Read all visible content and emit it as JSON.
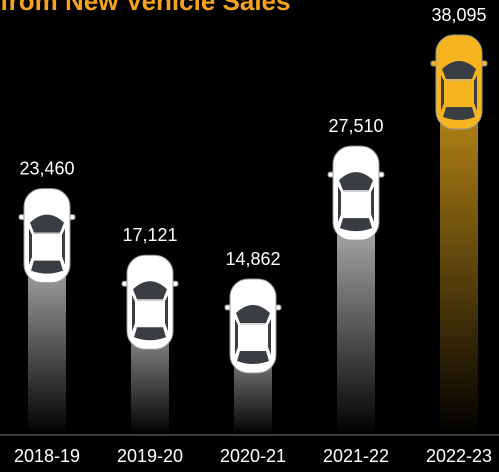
{
  "chart_data": {
    "type": "bar",
    "title": "from New Vehicle Sales",
    "categories": [
      "2018-19",
      "2019-20",
      "2020-21",
      "2021-22",
      "2022-23"
    ],
    "values": [
      23460,
      17121,
      14862,
      27510,
      38095
    ],
    "value_labels": [
      "23,460",
      "17,121",
      "14,862",
      "27,510",
      "38,095"
    ],
    "colors": [
      "#ffffff",
      "#ffffff",
      "#ffffff",
      "#ffffff",
      "#f6b51e"
    ]
  }
}
